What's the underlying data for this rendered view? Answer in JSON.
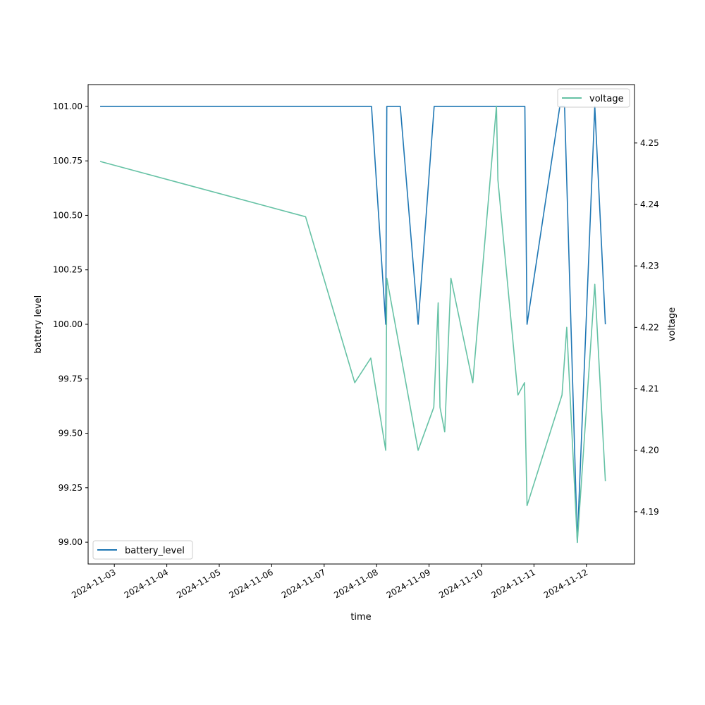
{
  "chart_data": {
    "type": "line",
    "xlabel": "time",
    "ylabel_left": "battery level",
    "ylabel_right": "voltage",
    "xlim": [
      "2024-11-02T12:00",
      "2024-11-12T22:00"
    ],
    "ylim_left": [
      98.9,
      101.1
    ],
    "ylim_right": [
      4.1815,
      4.2595
    ],
    "x_ticks": [
      "2024-11-03",
      "2024-11-04",
      "2024-11-05",
      "2024-11-06",
      "2024-11-07",
      "2024-11-08",
      "2024-11-09",
      "2024-11-10",
      "2024-11-11",
      "2024-11-12"
    ],
    "y_ticks_left": [
      "99.00",
      "99.25",
      "99.50",
      "99.75",
      "100.00",
      "100.25",
      "100.50",
      "100.75",
      "101.00"
    ],
    "y_ticks_right": [
      "4.19",
      "4.20",
      "4.21",
      "4.22",
      "4.23",
      "4.24",
      "4.25"
    ],
    "legend_left": {
      "label": "battery_level",
      "placement": "lower-left",
      "color": "#1f77b4"
    },
    "legend_right": {
      "label": "voltage",
      "placement": "upper-right",
      "color": "#66c2a5"
    },
    "series": [
      {
        "name": "battery_level",
        "axis": "left",
        "color": "#1f77b4",
        "points": [
          [
            "2024-11-02T17:30",
            101.0
          ],
          [
            "2024-11-07T21:40",
            101.0
          ],
          [
            "2024-11-08T04:10",
            100.0
          ],
          [
            "2024-11-08T04:40",
            101.0
          ],
          [
            "2024-11-08T10:50",
            101.0
          ],
          [
            "2024-11-08T19:00",
            100.0
          ],
          [
            "2024-11-09T02:20",
            101.0
          ],
          [
            "2024-11-10T19:50",
            101.0
          ],
          [
            "2024-11-10T20:50",
            100.0
          ],
          [
            "2024-11-11T11:50",
            101.0
          ],
          [
            "2024-11-11T14:00",
            101.0
          ],
          [
            "2024-11-11T19:50",
            99.0
          ],
          [
            "2024-11-12T03:50",
            101.0
          ],
          [
            "2024-11-12T08:40",
            100.0
          ]
        ]
      },
      {
        "name": "voltage",
        "axis": "right",
        "color": "#66c2a5",
        "points": [
          [
            "2024-11-02T17:30",
            4.247
          ],
          [
            "2024-11-06T15:30",
            4.238
          ],
          [
            "2024-11-07T14:00",
            4.211
          ],
          [
            "2024-11-07T21:20",
            4.215
          ],
          [
            "2024-11-08T04:10",
            4.2
          ],
          [
            "2024-11-08T04:40",
            4.228
          ],
          [
            "2024-11-08T19:00",
            4.2
          ],
          [
            "2024-11-09T02:10",
            4.207
          ],
          [
            "2024-11-09T04:10",
            4.224
          ],
          [
            "2024-11-09T05:00",
            4.207
          ],
          [
            "2024-11-09T07:10",
            4.203
          ],
          [
            "2024-11-09T10:00",
            4.228
          ],
          [
            "2024-11-09T20:00",
            4.211
          ],
          [
            "2024-11-10T06:50",
            4.256
          ],
          [
            "2024-11-10T07:30",
            4.244
          ],
          [
            "2024-11-10T16:40",
            4.209
          ],
          [
            "2024-11-10T19:40",
            4.211
          ],
          [
            "2024-11-10T20:50",
            4.191
          ],
          [
            "2024-11-11T12:50",
            4.209
          ],
          [
            "2024-11-11T15:00",
            4.22
          ],
          [
            "2024-11-11T19:50",
            4.185
          ],
          [
            "2024-11-12T03:50",
            4.227
          ],
          [
            "2024-11-12T08:40",
            4.195
          ]
        ]
      }
    ]
  }
}
